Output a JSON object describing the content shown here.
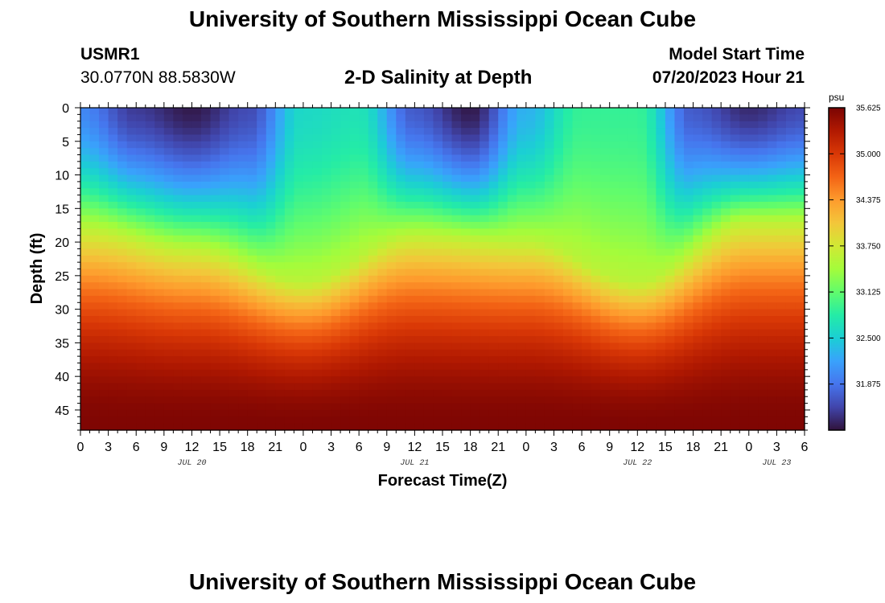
{
  "header": {
    "title": "University of Southern Mississippi Ocean Cube",
    "station_name": "USMR1",
    "station_coords": "30.0770N  88.5830W",
    "subtitle": "2-D Salinity at Depth",
    "model_label": "Model Start Time",
    "model_time": "07/20/2023 Hour 21"
  },
  "footer": {
    "title": "University of Southern Mississippi Ocean Cube"
  },
  "chart_data": {
    "type": "heatmap",
    "title": "2-D Salinity at Depth",
    "xlabel": "Forecast Time(Z)",
    "ylabel": "Depth (ft)",
    "x_hours_range": [
      0,
      78
    ],
    "y_range_ft": [
      0,
      48
    ],
    "y_inverted": true,
    "x_tick_labels": [
      "0",
      "3",
      "6",
      "9",
      "12",
      "15",
      "18",
      "21",
      "0",
      "3",
      "6",
      "9",
      "12",
      "15",
      "18",
      "21",
      "0",
      "3",
      "6",
      "9",
      "12",
      "15",
      "18",
      "21",
      "0",
      "3",
      "6"
    ],
    "y_ticks": [
      0,
      5,
      10,
      15,
      20,
      25,
      30,
      35,
      40,
      45
    ],
    "date_labels": [
      {
        "label": "JUL 20",
        "hour": 12
      },
      {
        "label": "JUL 21",
        "hour": 36
      },
      {
        "label": "JUL 22",
        "hour": 60
      },
      {
        "label": "JUL 23",
        "hour": 75
      }
    ],
    "colorbar": {
      "unit": "psu",
      "min": 31.25,
      "max": 35.625,
      "ticks": [
        "35.625",
        "35.000",
        "34.375",
        "33.750",
        "33.125",
        "32.500",
        "31.875"
      ],
      "colors": [
        "#30123b",
        "#4145ab",
        "#4675ed",
        "#39a2fc",
        "#1bcfd4",
        "#24eca6",
        "#61fc6c",
        "#a4fc3b",
        "#d1e834",
        "#f3c63a",
        "#fe9b2d",
        "#f36315",
        "#d93806",
        "#b11901",
        "#7a0403"
      ]
    },
    "surface_salinity_profile": {
      "note": "approximate salinity (psu) at the surface over forecast hours",
      "hours": [
        0,
        6,
        12,
        18,
        24,
        30,
        36,
        42,
        48,
        54,
        60,
        66,
        72,
        78
      ],
      "values": [
        32.0,
        31.5,
        31.3,
        31.6,
        32.6,
        32.7,
        31.7,
        31.3,
        32.3,
        32.9,
        32.9,
        31.7,
        31.4,
        31.6
      ]
    },
    "halocline_depth_ft": {
      "hours": [
        0,
        12,
        24,
        36,
        48,
        60,
        72,
        78
      ],
      "values": [
        18,
        21,
        26,
        19,
        20,
        26,
        17,
        17
      ]
    },
    "deep_salinity_psu": 35.6
  }
}
